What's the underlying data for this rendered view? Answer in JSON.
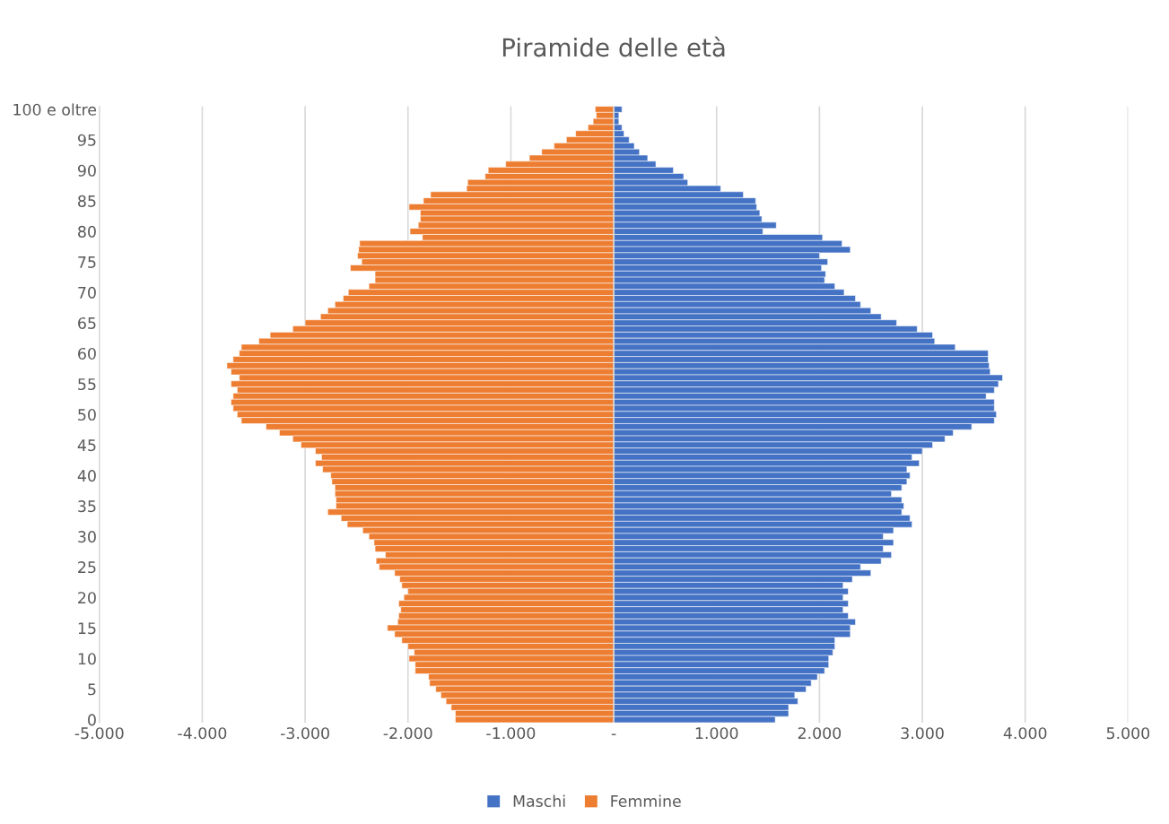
{
  "chart_data": {
    "type": "bar",
    "orientation": "horizontal",
    "title": "Piramide delle età",
    "categories": [
      "100 e oltre",
      null,
      null,
      null,
      null,
      "95",
      null,
      null,
      null,
      null,
      "90",
      null,
      null,
      null,
      null,
      "85",
      null,
      null,
      null,
      null,
      "80",
      null,
      null,
      null,
      null,
      "75",
      null,
      null,
      null,
      null,
      "70",
      null,
      null,
      null,
      null,
      "65",
      null,
      null,
      null,
      null,
      "60",
      null,
      null,
      null,
      null,
      "55",
      null,
      null,
      null,
      null,
      "50",
      null,
      null,
      null,
      null,
      "45",
      null,
      null,
      null,
      null,
      "40",
      null,
      null,
      null,
      null,
      "35",
      null,
      null,
      null,
      null,
      "30",
      null,
      null,
      null,
      null,
      "25",
      null,
      null,
      null,
      null,
      "20",
      null,
      null,
      null,
      null,
      "15",
      null,
      null,
      null,
      null,
      "10",
      null,
      null,
      null,
      null,
      "5",
      null,
      null,
      null,
      null,
      "0"
    ],
    "series": [
      {
        "name": "Maschi",
        "color": "#4472c4",
        "values": [
          80,
          50,
          50,
          80,
          100,
          150,
          200,
          250,
          330,
          410,
          580,
          680,
          720,
          1040,
          1260,
          1380,
          1390,
          1420,
          1440,
          1580,
          1450,
          2030,
          2220,
          2300,
          2000,
          2080,
          2020,
          2060,
          2050,
          2150,
          2240,
          2350,
          2400,
          2500,
          2600,
          2750,
          2950,
          3100,
          3120,
          3320,
          3640,
          3640,
          3650,
          3660,
          3780,
          3740,
          3700,
          3620,
          3700,
          3700,
          3720,
          3700,
          3480,
          3300,
          3220,
          3100,
          3000,
          2900,
          2970,
          2850,
          2880,
          2850,
          2800,
          2700,
          2800,
          2820,
          2800,
          2880,
          2900,
          2720,
          2620,
          2720,
          2620,
          2700,
          2600,
          2400,
          2500,
          2320,
          2230,
          2280,
          2230,
          2280,
          2230,
          2280,
          2350,
          2300,
          2300,
          2150,
          2150,
          2130,
          2090,
          2090,
          2050,
          1980,
          1920,
          1870,
          1760,
          1790,
          1700,
          1700,
          1570
        ]
      },
      {
        "name": "Femmine",
        "color": "#ed7d31",
        "values": [
          -180,
          -170,
          -200,
          -250,
          -370,
          -460,
          -580,
          -700,
          -820,
          -1050,
          -1220,
          -1250,
          -1420,
          -1430,
          -1780,
          -1850,
          -1990,
          -1880,
          -1880,
          -1900,
          -1980,
          -1860,
          -2470,
          -2480,
          -2490,
          -2450,
          -2560,
          -2320,
          -2320,
          -2380,
          -2580,
          -2630,
          -2710,
          -2780,
          -2850,
          -3000,
          -3120,
          -3340,
          -3450,
          -3620,
          -3640,
          -3700,
          -3760,
          -3720,
          -3640,
          -3720,
          -3660,
          -3700,
          -3720,
          -3700,
          -3660,
          -3620,
          -3380,
          -3250,
          -3120,
          -3040,
          -2900,
          -2840,
          -2900,
          -2830,
          -2750,
          -2740,
          -2710,
          -2710,
          -2700,
          -2700,
          -2780,
          -2650,
          -2590,
          -2440,
          -2380,
          -2330,
          -2320,
          -2220,
          -2310,
          -2280,
          -2130,
          -2080,
          -2060,
          -2000,
          -2040,
          -2090,
          -2070,
          -2090,
          -2100,
          -2200,
          -2130,
          -2060,
          -2000,
          -1940,
          -1990,
          -1930,
          -1930,
          -1800,
          -1790,
          -1730,
          -1680,
          -1630,
          -1580,
          -1540,
          -1540
        ]
      }
    ],
    "xlim": [
      -5000,
      5000
    ],
    "xticks": [
      {
        "value": -5000,
        "label": "-5.000"
      },
      {
        "value": -4000,
        "label": "-4.000"
      },
      {
        "value": -3000,
        "label": "-3.000"
      },
      {
        "value": -2000,
        "label": "-2.000"
      },
      {
        "value": -1000,
        "label": "-1.000"
      },
      {
        "value": 0,
        "label": "-"
      },
      {
        "value": 1000,
        "label": "1.000"
      },
      {
        "value": 2000,
        "label": "2.000"
      },
      {
        "value": 3000,
        "label": "3.000"
      },
      {
        "value": 4000,
        "label": "4.000"
      },
      {
        "value": 5000,
        "label": "5.000"
      }
    ],
    "grid": "x",
    "legend": "bottom",
    "stacked": true
  }
}
